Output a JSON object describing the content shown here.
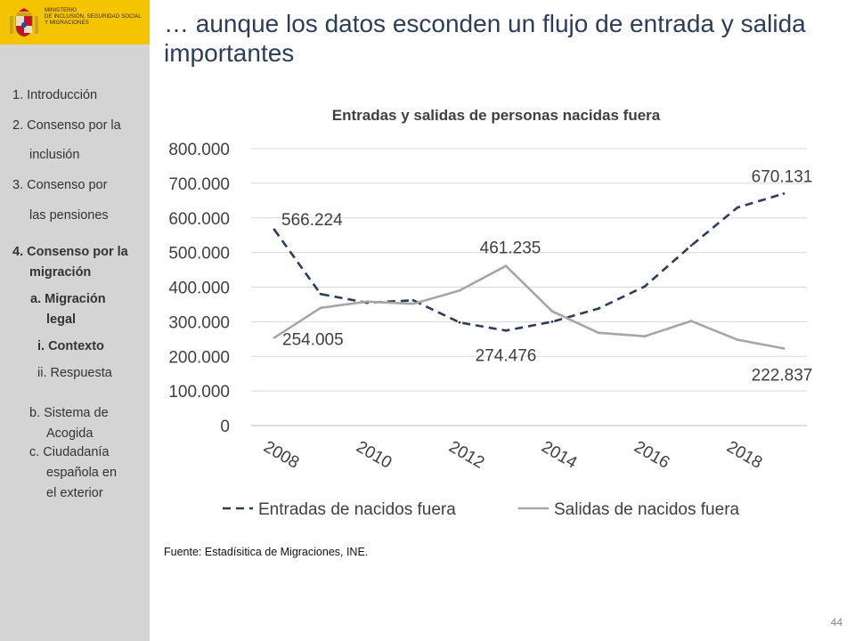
{
  "header": {
    "ministry_lines": [
      "MINISTERIO",
      "DE INCLUSIÓN, SEGURIDAD SOCIAL",
      "Y MIGRACIONES"
    ]
  },
  "sidebar": {
    "items": [
      {
        "label": "1. Introducción"
      },
      {
        "label": "2. Consenso por la"
      },
      {
        "label": "inclusión"
      },
      {
        "label": "3. Consenso por"
      },
      {
        "label": "las pensiones"
      },
      {
        "label": "4. Consenso por la"
      },
      {
        "label": "migración"
      },
      {
        "label": "a. Migración"
      },
      {
        "label": "legal"
      },
      {
        "label": "i.  Contexto"
      },
      {
        "label": "ii. Respuesta"
      },
      {
        "label": "b. Sistema de"
      },
      {
        "label": "Acogida"
      },
      {
        "label": "c. Ciudadanía"
      },
      {
        "label": "española en"
      },
      {
        "label": "el exterior"
      }
    ]
  },
  "slide": {
    "title": "… aunque los datos esconden un flujo de entrada y salida importantes",
    "source": "Fuente:  Estadísitica de Migraciones, INE.",
    "page_number": "44"
  },
  "colors": {
    "entradas": "#2e3d57",
    "salidas": "#a6a6a6",
    "logo_bg": "#f5c400",
    "sidebar_bg": "#d4d4d4"
  },
  "chart_data": {
    "type": "line",
    "title": "Entradas y salidas de personas nacidas fuera",
    "x": [
      2008,
      2009,
      2010,
      2011,
      2012,
      2013,
      2014,
      2015,
      2016,
      2017,
      2018,
      2019
    ],
    "x_tick_labels": [
      "2008",
      "2010",
      "2012",
      "2014",
      "2016",
      "2018"
    ],
    "y_tick_labels": [
      "0",
      "100.000",
      "200.000",
      "300.000",
      "400.000",
      "500.000",
      "600.000",
      "700.000",
      "800.000"
    ],
    "ylim": [
      0,
      800000
    ],
    "grid": true,
    "legend": "bottom",
    "series": [
      {
        "name": "Entradas de nacidos fuera",
        "style": "dashed",
        "values": [
          566224,
          380000,
          355000,
          362000,
          298000,
          274476,
          300000,
          338000,
          402000,
          520000,
          630000,
          670131
        ]
      },
      {
        "name": "Salidas de nacidos fuera",
        "style": "solid",
        "values": [
          254005,
          340000,
          358000,
          352000,
          390000,
          461235,
          330000,
          268000,
          258000,
          302000,
          248000,
          222837
        ]
      }
    ],
    "annotations": [
      {
        "text": "566.224",
        "series": 0,
        "x": 2008
      },
      {
        "text": "274.476",
        "series": 0,
        "x": 2013
      },
      {
        "text": "670.131",
        "series": 0,
        "x": 2019
      },
      {
        "text": "254.005",
        "series": 1,
        "x": 2008
      },
      {
        "text": "461.235",
        "series": 1,
        "x": 2013
      },
      {
        "text": "222.837",
        "series": 1,
        "x": 2019
      }
    ]
  }
}
